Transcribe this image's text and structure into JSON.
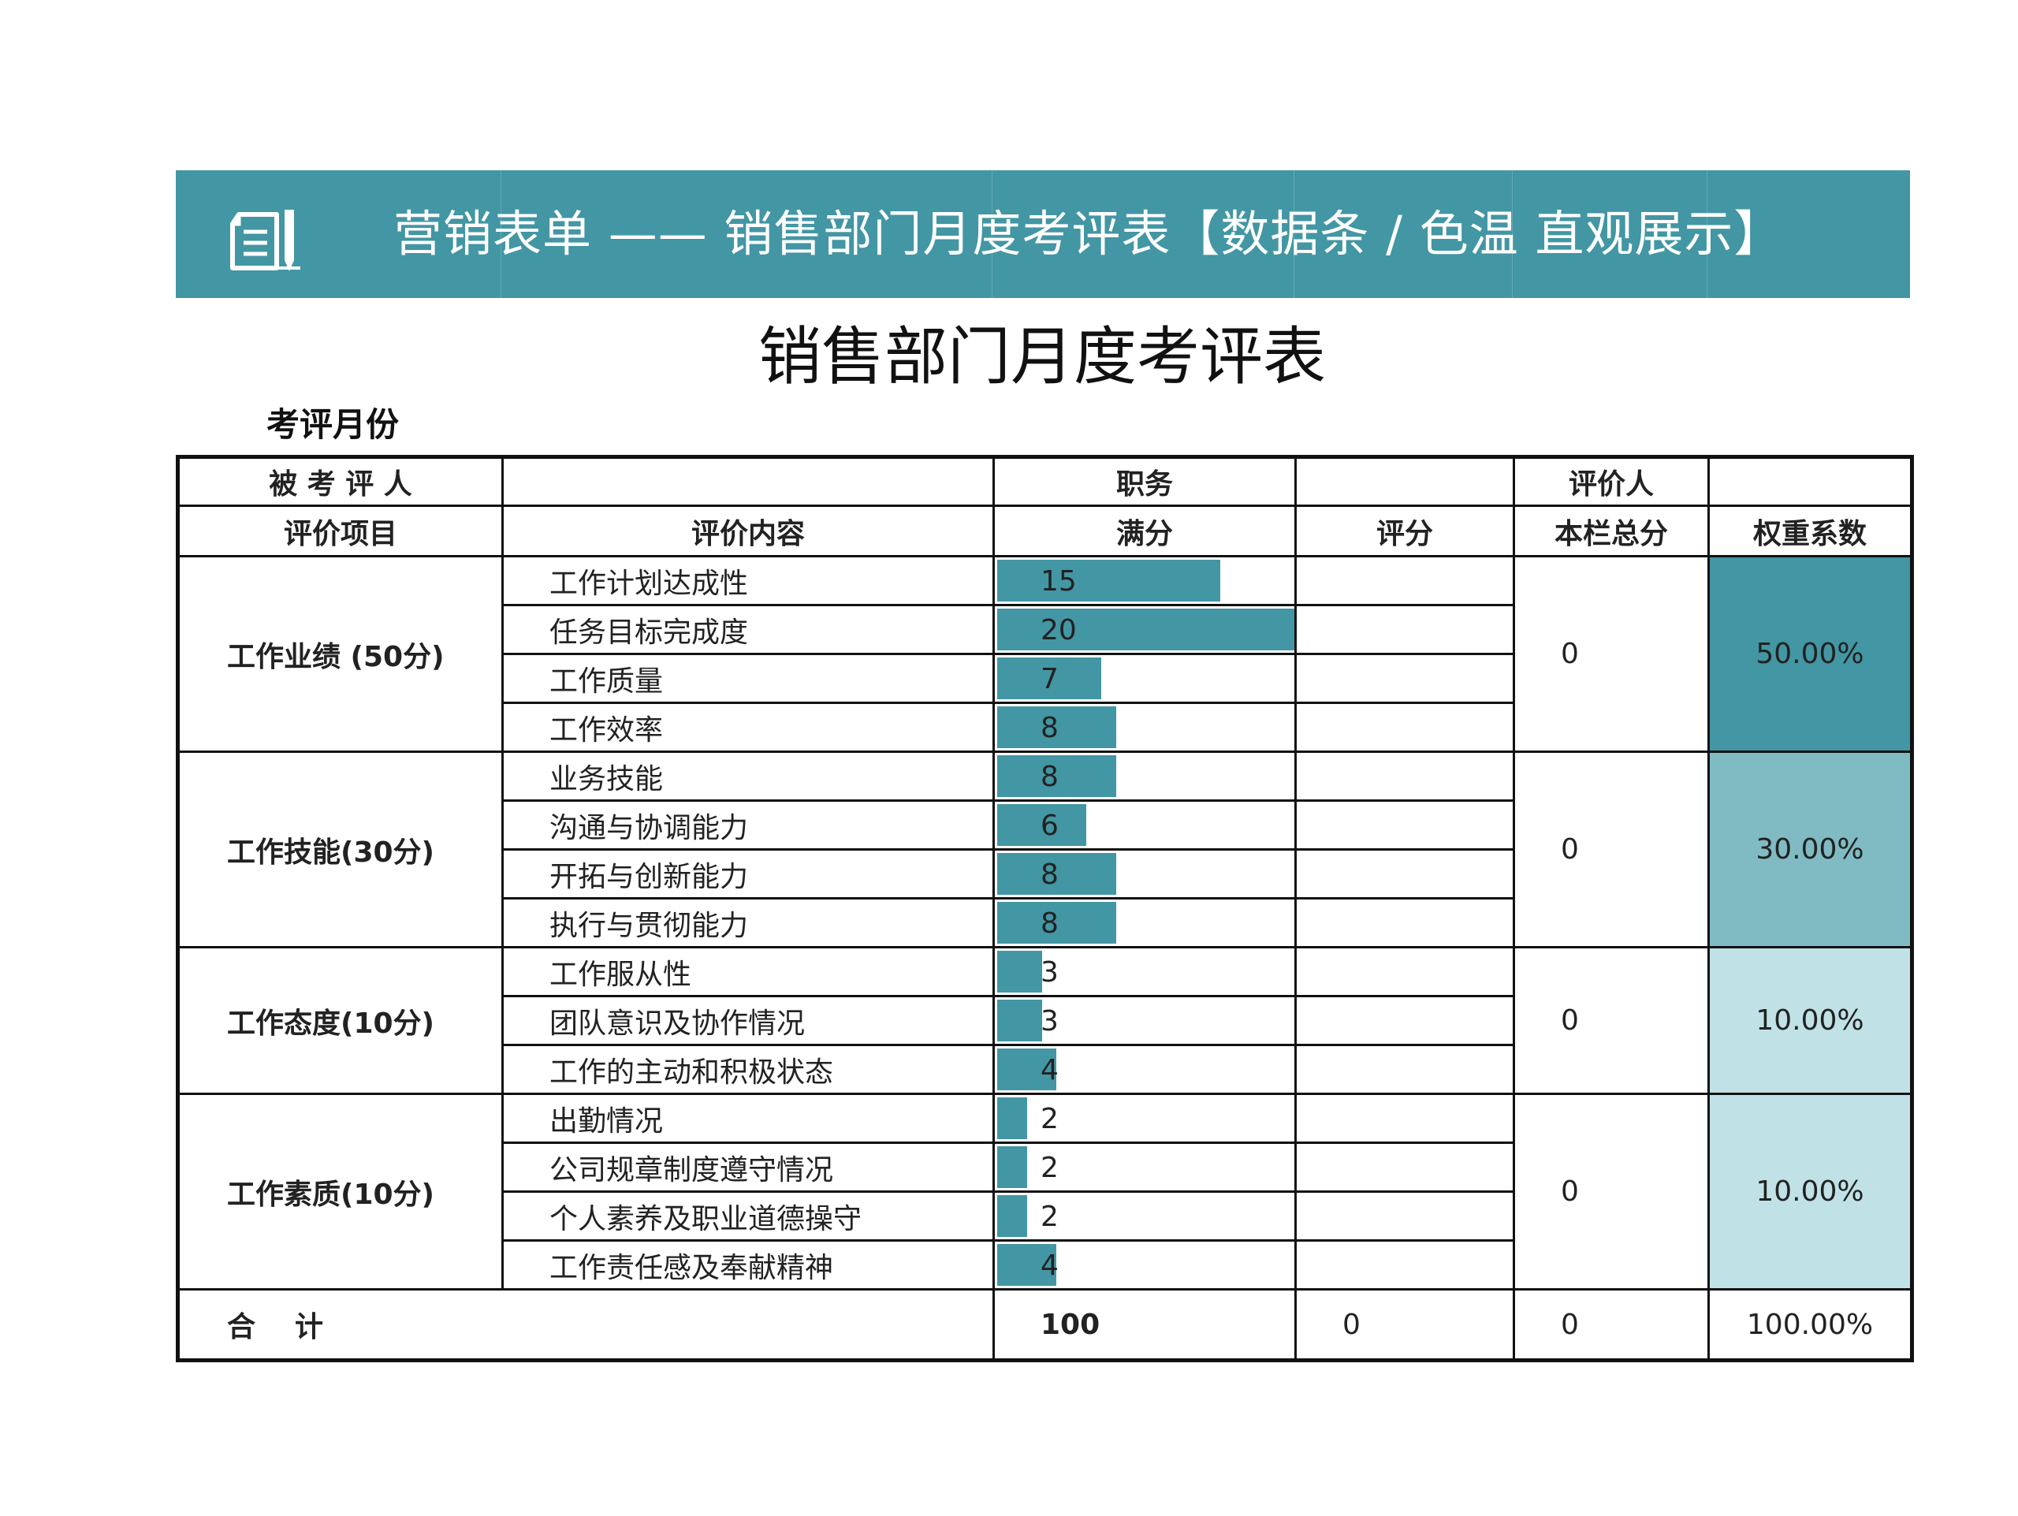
{
  "banner": {
    "title": "营销表单 —— 销售部门月度考评表【数据条 / 色温 直观展示】",
    "icon": "document-edit-icon"
  },
  "main_title": "销售部门月度考评表",
  "month_label": "考评月份",
  "header1": {
    "evaluatee": "被 考 评 人",
    "evaluatee_value": "",
    "position": "职务",
    "position_value": "",
    "evaluator": "评价人",
    "evaluator_value": ""
  },
  "header2": {
    "item": "评价项目",
    "content": "评价内容",
    "full": "满分",
    "score": "评分",
    "subtotal": "本栏总分",
    "weight": "权重系数"
  },
  "max_full_score": 20,
  "categories": [
    {
      "name": "工作业绩 (50分)",
      "subtotal": "0",
      "weight": "50.00%",
      "rows": [
        {
          "content": "工作计划达成性",
          "full": 15
        },
        {
          "content": "任务目标完成度",
          "full": 20
        },
        {
          "content": "工作质量",
          "full": 7
        },
        {
          "content": "工作效率",
          "full": 8
        }
      ]
    },
    {
      "name": "工作技能(30分)",
      "subtotal": "0",
      "weight": "30.00%",
      "rows": [
        {
          "content": "业务技能",
          "full": 8
        },
        {
          "content": "沟通与协调能力",
          "full": 6
        },
        {
          "content": "开拓与创新能力",
          "full": 8
        },
        {
          "content": "执行与贯彻能力",
          "full": 8
        }
      ]
    },
    {
      "name": "工作态度(10分)",
      "subtotal": "0",
      "weight": "10.00%",
      "rows": [
        {
          "content": "工作服从性",
          "full": 3
        },
        {
          "content": "团队意识及协作情况",
          "full": 3
        },
        {
          "content": "工作的主动和积极状态",
          "full": 4
        }
      ]
    },
    {
      "name": "工作素质(10分)",
      "subtotal": "0",
      "weight": "10.00%",
      "rows": [
        {
          "content": "出勤情况",
          "full": 2
        },
        {
          "content": "公司规章制度遵守情况",
          "full": 2
        },
        {
          "content": "个人素养及职业道德操守",
          "full": 2
        },
        {
          "content": "工作责任感及奉献精神",
          "full": 4
        }
      ]
    }
  ],
  "total": {
    "label_a": "合",
    "label_b": "计",
    "full": "100",
    "score": "0",
    "subtotal": "0",
    "weight": "100.00%"
  },
  "colors": {
    "accent": "#4396a3",
    "weight_mid": "#80bbc3",
    "weight_light": "#c0e2e6"
  }
}
